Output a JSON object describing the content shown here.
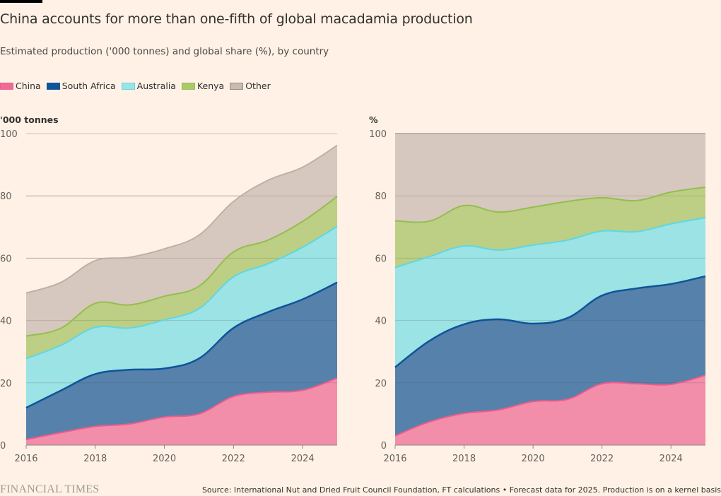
{
  "header": {
    "title": "China accounts for more than one-fifth of global macadamia production",
    "subtitle": "Estimated production ('000 tonnes) and global share (%), by country"
  },
  "legend": [
    {
      "label": "China",
      "color": "#f28ea9",
      "line": "#ee5b8c"
    },
    {
      "label": "South Africa",
      "color": "#0f5499",
      "line": "#0f5499"
    },
    {
      "label": "Australia",
      "color": "#7fd8e4",
      "line": "#5fd7e4"
    },
    {
      "label": "Kenya",
      "color": "#96bd4f",
      "line": "#96bd4f"
    },
    {
      "label": "Other",
      "color": "#c8bbb2",
      "line": "#b3a69e"
    }
  ],
  "colors": {
    "China": {
      "fill": "#f28ea9",
      "line": "#ee5b8c"
    },
    "South Africa": {
      "fill": "#5681ab",
      "line": "#0f5499"
    },
    "Australia": {
      "fill": "#9be3e5",
      "line": "#5fd7e4"
    },
    "Kenya": {
      "fill": "#bccf84",
      "line": "#96bd4f"
    },
    "Other": {
      "fill": "#d6c8bf",
      "line": "#bfb0a7"
    },
    "background": "#fff1e5",
    "grid": "#cdc2b8"
  },
  "chart_data": [
    {
      "type": "area",
      "stacked": true,
      "title": "Production",
      "ylabel": "'000 tonnes",
      "xlabel": "",
      "x": [
        2016,
        2017,
        2018,
        2019,
        2020,
        2021,
        2022,
        2023,
        2024,
        2025
      ],
      "xticks": [
        "2016",
        "2018",
        "2020",
        "2022",
        "2024"
      ],
      "yticks": [
        "0",
        "20",
        "40",
        "60",
        "80",
        "100"
      ],
      "ylim": [
        0,
        100
      ],
      "grid": true,
      "series": [
        {
          "name": "China",
          "values": [
            1.8,
            4.0,
            6.0,
            6.8,
            9.0,
            10.0,
            15.6,
            17.0,
            17.6,
            21.5
          ]
        },
        {
          "name": "South Africa",
          "values": [
            10.2,
            13.5,
            16.8,
            17.4,
            15.6,
            17.8,
            22.0,
            25.7,
            29.2,
            30.7
          ]
        },
        {
          "name": "Australia",
          "values": [
            15.8,
            14.5,
            15.0,
            13.4,
            15.6,
            16.0,
            16.4,
            15.5,
            16.7,
            18.0
          ]
        },
        {
          "name": "Kenya",
          "values": [
            7.2,
            5.5,
            7.7,
            7.4,
            7.6,
            7.2,
            8.0,
            7.6,
            8.3,
            9.6
          ]
        },
        {
          "name": "Other",
          "values": [
            13.8,
            14.7,
            13.7,
            15.3,
            15.2,
            16.4,
            16.2,
            19.2,
            17.4,
            16.4
          ]
        }
      ]
    },
    {
      "type": "area",
      "stacked": true,
      "title": "Global share",
      "ylabel": "%",
      "xlabel": "",
      "x": [
        2016,
        2017,
        2018,
        2019,
        2020,
        2021,
        2022,
        2023,
        2024,
        2025
      ],
      "xticks": [
        "2016",
        "2018",
        "2020",
        "2022",
        "2024"
      ],
      "yticks": [
        "0",
        "20",
        "40",
        "60",
        "80",
        "100"
      ],
      "ylim": [
        0,
        100
      ],
      "grid": true,
      "series": [
        {
          "name": "China",
          "values": [
            3.0,
            7.5,
            10.2,
            11.3,
            14.0,
            14.7,
            19.7,
            19.7,
            19.5,
            22.4
          ]
        },
        {
          "name": "South Africa",
          "values": [
            22.0,
            26.0,
            28.6,
            29.1,
            25.0,
            26.1,
            28.3,
            30.6,
            32.2,
            31.8
          ]
        },
        {
          "name": "Australia",
          "values": [
            32.0,
            27.0,
            25.1,
            22.2,
            25.2,
            25.0,
            20.7,
            18.2,
            19.3,
            18.8
          ]
        },
        {
          "name": "Kenya",
          "values": [
            15.0,
            11.4,
            13.0,
            12.2,
            12.2,
            12.4,
            10.7,
            10.0,
            10.2,
            9.8
          ]
        },
        {
          "name": "Other",
          "values": [
            28.0,
            28.1,
            23.1,
            25.2,
            23.6,
            21.8,
            20.6,
            21.5,
            18.8,
            17.2
          ]
        }
      ]
    }
  ],
  "footer": {
    "logo": "FINANCIAL TIMES",
    "source": "Source: International Nut and Dried Fruit Council Foundation, FT calculations • Forecast data for 2025. Production is on a kernel basis"
  }
}
